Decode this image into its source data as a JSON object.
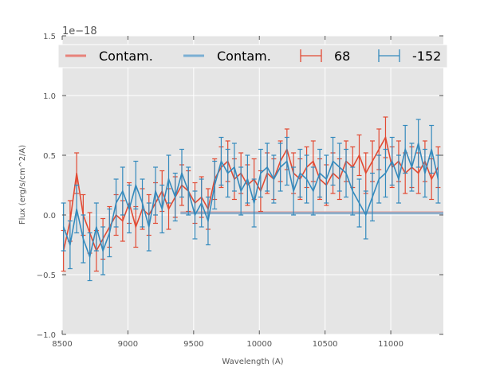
{
  "chart_data": {
    "type": "line",
    "title": "",
    "xlabel": "Wavelength (A)",
    "ylabel": "Flux (erg/s/cm^2/A)",
    "y_offset_label": "1e−18",
    "xlim": [
      8500,
      11400
    ],
    "ylim": [
      -1.0,
      1.5
    ],
    "xticks": [
      8500,
      9000,
      9500,
      10000,
      10500,
      11000
    ],
    "xtick_labels": [
      "8500",
      "9000",
      "9500",
      "10000",
      "10500",
      "11000"
    ],
    "yticks": [
      -1.0,
      -0.5,
      0.0,
      0.5,
      1.0,
      1.5
    ],
    "ytick_labels": [
      "−1.0",
      "−0.5",
      "0.0",
      "0.5",
      "1.0",
      "1.5"
    ],
    "grid": true,
    "legend_position": "top",
    "legend": [
      {
        "label": "Contam.",
        "kind": "line",
        "color": "#e8837a"
      },
      {
        "label": "Contam.",
        "kind": "line",
        "color": "#7aafd4"
      },
      {
        "label": "68",
        "kind": "errorbar",
        "color": "#e24a33"
      },
      {
        "label": "-152",
        "kind": "errorbar",
        "color": "#348abd"
      }
    ],
    "x": [
      8510,
      8560,
      8610,
      8660,
      8710,
      8760,
      8810,
      8860,
      8910,
      8960,
      9010,
      9060,
      9110,
      9160,
      9210,
      9260,
      9310,
      9360,
      9410,
      9460,
      9510,
      9560,
      9610,
      9660,
      9710,
      9760,
      9810,
      9860,
      9910,
      9960,
      10010,
      10060,
      10110,
      10160,
      10210,
      10260,
      10310,
      10360,
      10410,
      10460,
      10510,
      10560,
      10610,
      10660,
      10710,
      10760,
      10810,
      10860,
      10910,
      10960,
      11010,
      11060,
      11110,
      11160,
      11210,
      11260,
      11310,
      11360
    ],
    "series": [
      {
        "name": "68",
        "color": "#e24a33",
        "error": 0.17,
        "values": [
          -0.3,
          -0.05,
          0.35,
          0.0,
          -0.15,
          -0.3,
          -0.2,
          -0.1,
          0.0,
          -0.05,
          0.1,
          -0.1,
          0.05,
          0.0,
          0.1,
          0.2,
          0.05,
          0.15,
          0.25,
          0.2,
          0.1,
          0.15,
          0.05,
          0.3,
          0.4,
          0.45,
          0.3,
          0.35,
          0.25,
          0.3,
          0.2,
          0.35,
          0.3,
          0.45,
          0.55,
          0.35,
          0.3,
          0.4,
          0.45,
          0.3,
          0.25,
          0.35,
          0.3,
          0.45,
          0.4,
          0.5,
          0.35,
          0.45,
          0.55,
          0.65,
          0.4,
          0.45,
          0.35,
          0.4,
          0.35,
          0.45,
          0.3,
          0.4
        ]
      },
      {
        "name": "-152",
        "color": "#348abd",
        "error": 0.2,
        "values": [
          -0.1,
          -0.25,
          0.05,
          -0.2,
          -0.35,
          -0.1,
          -0.3,
          -0.15,
          0.1,
          0.2,
          0.05,
          0.25,
          0.1,
          -0.1,
          0.2,
          0.05,
          0.3,
          0.15,
          0.35,
          0.2,
          0.0,
          0.1,
          -0.05,
          0.25,
          0.45,
          0.35,
          0.4,
          0.2,
          0.3,
          0.1,
          0.35,
          0.4,
          0.3,
          0.4,
          0.45,
          0.2,
          0.35,
          0.3,
          0.2,
          0.35,
          0.3,
          0.45,
          0.4,
          0.35,
          0.2,
          0.1,
          0.0,
          0.15,
          0.3,
          0.35,
          0.45,
          0.3,
          0.55,
          0.4,
          0.6,
          0.35,
          0.55,
          0.3
        ]
      }
    ],
    "contamination": [
      {
        "name": "Contam.",
        "color": "#e8837a",
        "value": 0.02
      },
      {
        "name": "Contam.",
        "color": "#7aafd4",
        "value": 0.015
      }
    ]
  }
}
